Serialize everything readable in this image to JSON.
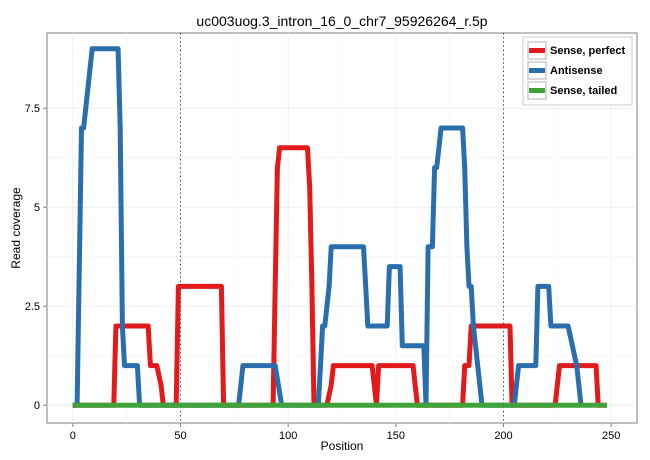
{
  "chart_data": {
    "type": "line",
    "title": "uc003uog.3_intron_16_0_chr7_95926264_r.5p",
    "xlabel": "Position",
    "ylabel": "Read coverage",
    "xlim": [
      -12,
      262
    ],
    "ylim": [
      -0.45,
      9.4
    ],
    "xticks": [
      0,
      50,
      100,
      150,
      200,
      250
    ],
    "yticks": [
      0,
      2.5,
      5,
      7.5
    ],
    "ytick_labels": [
      "0",
      "2.5",
      "5",
      "7.5"
    ],
    "vlines": [
      50,
      200
    ],
    "grid": true,
    "legend_position": "top-right",
    "series": [
      {
        "name": "Sense, perfect",
        "color": "#e31a1c",
        "x": [
          0,
          19,
          20,
          35,
          36,
          39,
          41,
          42,
          48,
          49,
          69,
          70,
          93,
          94,
          95,
          96,
          97,
          109,
          110,
          111,
          112,
          113,
          118,
          120,
          121,
          133,
          139,
          141,
          142,
          158,
          159,
          160,
          181,
          182,
          184,
          185,
          203,
          204,
          224,
          225,
          226,
          243,
          244,
          248
        ],
        "y": [
          0,
          0,
          2,
          2,
          1,
          1,
          0.5,
          0,
          0,
          3,
          3,
          0,
          0,
          3,
          6,
          6.5,
          6.5,
          6.5,
          5.5,
          3,
          0,
          0,
          0,
          0.5,
          1,
          1,
          1,
          0,
          1,
          1,
          0.5,
          0,
          0,
          1,
          1,
          2,
          2,
          0,
          0,
          0.5,
          1,
          1,
          0,
          0
        ]
      },
      {
        "name": "Antisense",
        "color": "#2b6ead",
        "x": [
          0,
          2,
          3,
          4,
          5,
          7,
          9,
          21,
          22,
          23,
          24,
          30,
          31,
          77,
          78,
          79,
          83,
          91,
          94,
          97,
          113,
          114,
          115,
          116,
          117,
          119,
          120,
          122,
          135,
          136,
          137,
          140,
          146,
          147,
          148,
          152,
          153,
          160,
          163,
          164,
          165,
          167,
          168,
          169,
          170,
          171,
          172,
          181,
          182,
          183,
          184,
          185,
          186,
          190,
          205,
          206,
          207,
          208,
          209,
          215,
          216,
          221,
          222,
          223,
          229,
          230,
          234,
          235,
          236
        ],
        "y": [
          0,
          0,
          3.5,
          7,
          7,
          8,
          9,
          9,
          7,
          2,
          1,
          1,
          0,
          0,
          0.5,
          1,
          1,
          1,
          1,
          0,
          0,
          0,
          1,
          2,
          2,
          3,
          4,
          4,
          4,
          3,
          2,
          2,
          2,
          3.5,
          3.5,
          3.5,
          1.5,
          1.5,
          1.5,
          0,
          4,
          4,
          6,
          6,
          6.5,
          7,
          7,
          7,
          6,
          4,
          3,
          3,
          2,
          0,
          0,
          0.5,
          1,
          1,
          1,
          1,
          3,
          3,
          2,
          2,
          2,
          2,
          1,
          0.5,
          0
        ]
      },
      {
        "name": "Sense, tailed",
        "color": "#3fa33a",
        "x": [
          0,
          248
        ],
        "y": [
          0,
          0
        ]
      }
    ]
  }
}
